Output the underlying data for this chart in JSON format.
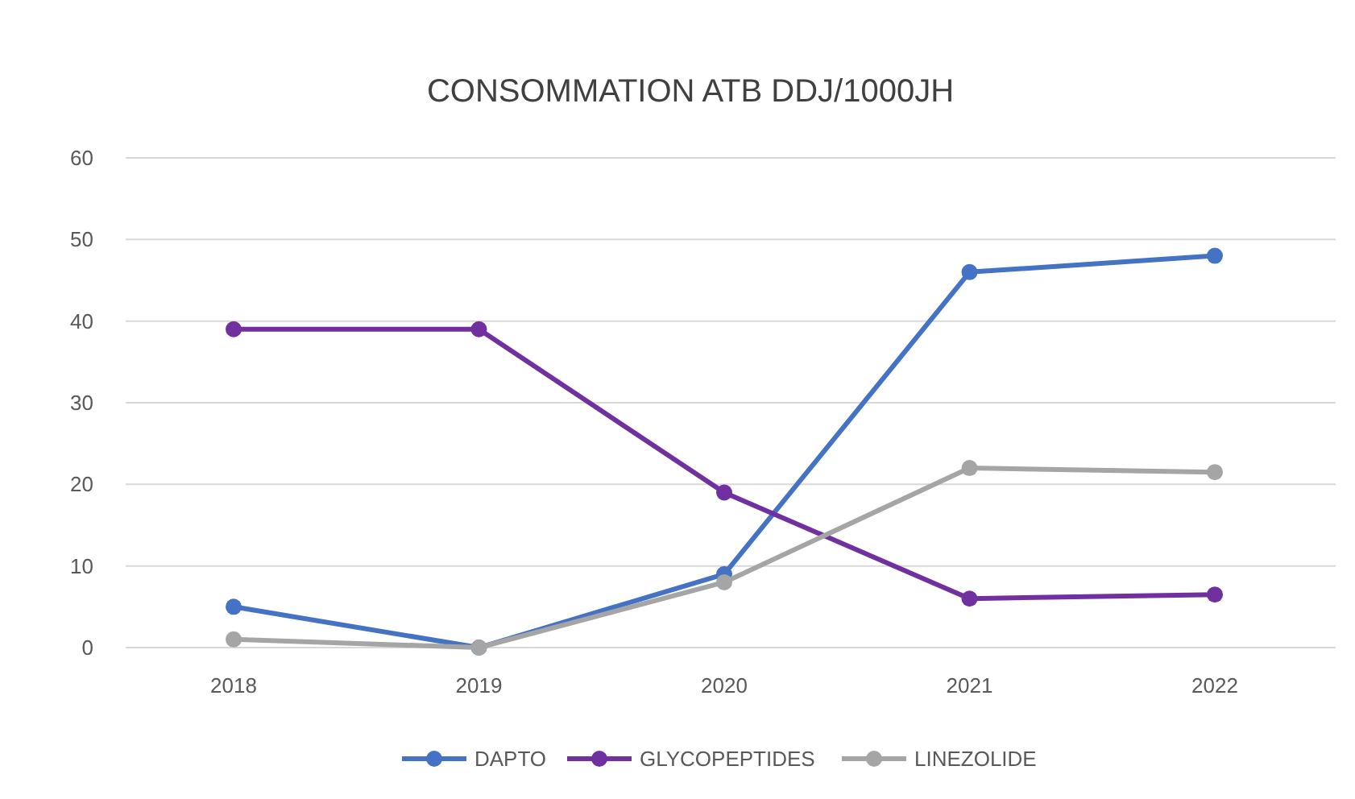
{
  "chart_data": {
    "type": "line",
    "title": "CONSOMMATION ATB DDJ/1000JH",
    "categories": [
      "2018",
      "2019",
      "2020",
      "2021",
      "2022"
    ],
    "series": [
      {
        "name": "DAPTO",
        "color": "#4472c4",
        "values": [
          5,
          0,
          9,
          46,
          48
        ]
      },
      {
        "name": "GLYCOPEPTIDES",
        "color": "#7030a0",
        "values": [
          39,
          39,
          19,
          6,
          6.5
        ]
      },
      {
        "name": "LINEZOLIDE",
        "color": "#a5a5a5",
        "values": [
          1,
          0,
          8,
          22,
          21.5
        ]
      }
    ],
    "ylim": [
      0,
      60
    ],
    "yticks": [
      0,
      10,
      20,
      30,
      40,
      50,
      60
    ],
    "grid": "y",
    "legend": "bottom",
    "marker": "circle",
    "line_style": "solid"
  }
}
